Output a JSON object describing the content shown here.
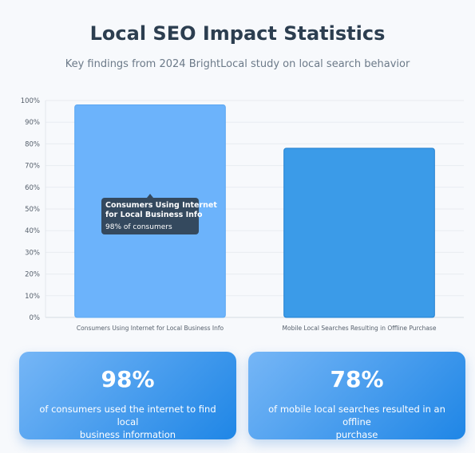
{
  "page": {
    "title": "Local SEO Impact Statistics",
    "subtitle": "Key findings from 2024 BrightLocal study on local search behavior"
  },
  "chart_data": {
    "type": "bar",
    "categories": [
      "Consumers Using Internet for Local Business Info",
      "Mobile Local Searches Resulting in Offline Purchase"
    ],
    "values": [
      98,
      78
    ],
    "ylim": [
      0,
      100
    ],
    "y_ticks": [
      "0%",
      "10%",
      "20%",
      "30%",
      "40%",
      "50%",
      "60%",
      "70%",
      "80%",
      "90%",
      "100%"
    ],
    "grid": true,
    "bar_colors": [
      "#6cb3fb",
      "#3b9be8"
    ],
    "tooltip": {
      "title_line1": "Consumers Using Internet",
      "title_line2": "for Local Business Info",
      "value_text": "98% of consumers"
    }
  },
  "cards": [
    {
      "value": "98%",
      "desc_line1": "of consumers used the internet to find local",
      "desc_line2": "business information"
    },
    {
      "value": "78%",
      "desc_line1": "of mobile local searches resulted in an offline",
      "desc_line2": "purchase"
    }
  ],
  "colors": {
    "accent": "#1f86e6",
    "tooltip_bg": "#34495e",
    "title": "#2c3e50"
  }
}
